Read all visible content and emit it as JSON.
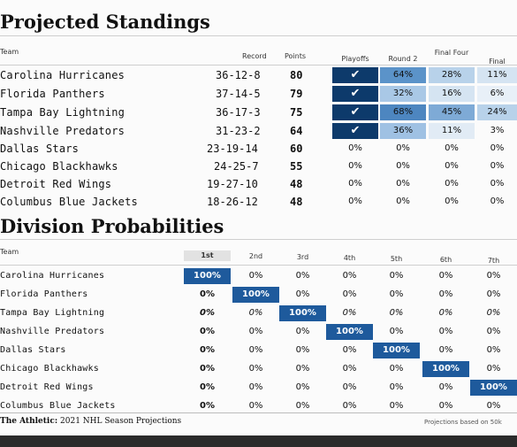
{
  "standings": {
    "title": "Projected Standings",
    "headers": {
      "team": "Team",
      "record": "Record",
      "points": "Points",
      "playoffs": "Playoffs",
      "round2": "Round 2",
      "final_four": "Final Four",
      "final": "Final"
    },
    "rows": [
      {
        "team": "Carolina Hurricanes",
        "record": "36-12-8",
        "points": "80",
        "playoffs": "✔",
        "round2": "64%",
        "final_four": "28%",
        "final": "11%"
      },
      {
        "team": "Florida Panthers",
        "record": "37-14-5",
        "points": "79",
        "playoffs": "✔",
        "round2": "32%",
        "final_four": "16%",
        "final": "6%"
      },
      {
        "team": "Tampa Bay Lightning",
        "record": "36-17-3",
        "points": "75",
        "playoffs": "✔",
        "round2": "68%",
        "final_four": "45%",
        "final": "24%"
      },
      {
        "team": "Nashville Predators",
        "record": "31-23-2",
        "points": "64",
        "playoffs": "✔",
        "round2": "36%",
        "final_four": "11%",
        "final": "3%"
      },
      {
        "team": "Dallas Stars",
        "record": "23-19-14",
        "points": "60",
        "playoffs": "0%",
        "round2": "0%",
        "final_four": "0%",
        "final": "0%"
      },
      {
        "team": "Chicago Blackhawks",
        "record": "24-25-7",
        "points": "55",
        "playoffs": "0%",
        "round2": "0%",
        "final_four": "0%",
        "final": "0%"
      },
      {
        "team": "Detroit Red Wings",
        "record": "19-27-10",
        "points": "48",
        "playoffs": "0%",
        "round2": "0%",
        "final_four": "0%",
        "final": "0%"
      },
      {
        "team": "Columbus Blue Jackets",
        "record": "18-26-12",
        "points": "48",
        "playoffs": "0%",
        "round2": "0%",
        "final_four": "0%",
        "final": "0%"
      }
    ]
  },
  "division": {
    "title": "Division Probabilities",
    "headers": {
      "team": "Team",
      "p1": "1st",
      "p2": "2nd",
      "p3": "3rd",
      "p4": "4th",
      "p5": "5th",
      "p6": "6th",
      "p7": "7th"
    },
    "rows": [
      {
        "team": "Carolina Hurricanes",
        "values": [
          "100%",
          "0%",
          "0%",
          "0%",
          "0%",
          "0%",
          "0%"
        ]
      },
      {
        "team": "Florida Panthers",
        "values": [
          "0%",
          "100%",
          "0%",
          "0%",
          "0%",
          "0%",
          "0%"
        ]
      },
      {
        "team": "Tampa Bay Lightning",
        "values": [
          "0%",
          "0%",
          "100%",
          "0%",
          "0%",
          "0%",
          "0%"
        ]
      },
      {
        "team": "Nashville Predators",
        "values": [
          "0%",
          "0%",
          "0%",
          "100%",
          "0%",
          "0%",
          "0%"
        ]
      },
      {
        "team": "Dallas Stars",
        "values": [
          "0%",
          "0%",
          "0%",
          "0%",
          "100%",
          "0%",
          "0%"
        ]
      },
      {
        "team": "Chicago Blackhawks",
        "values": [
          "0%",
          "0%",
          "0%",
          "0%",
          "0%",
          "100%",
          "0%"
        ]
      },
      {
        "team": "Detroit Red Wings",
        "values": [
          "0%",
          "0%",
          "0%",
          "0%",
          "0%",
          "0%",
          "100%"
        ]
      },
      {
        "team": "Columbus Blue Jackets",
        "values": [
          "0%",
          "0%",
          "0%",
          "0%",
          "0%",
          "0%",
          "0%"
        ]
      }
    ]
  },
  "footer": {
    "source_brand": "The Athletic:",
    "source_text": "2021 NHL Season Projections",
    "note": "Projections based on 50k"
  },
  "colors": {
    "dark_blue": "#0d3a6b",
    "strong_blue": "#1e5a9c",
    "mid_blue": "#5b93c9",
    "light_blue": "#a9c8e6",
    "pale_blue": "#d5e4f2",
    "palest_blue": "#e8f0f8"
  }
}
